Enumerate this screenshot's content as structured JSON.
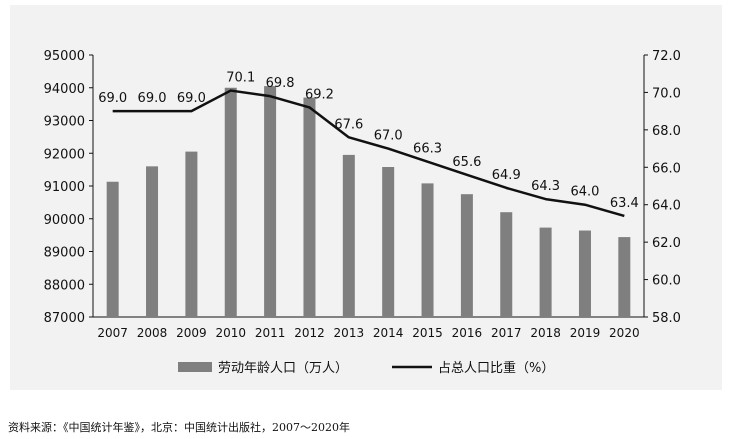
{
  "chart_data": {
    "type": "bar",
    "categories": [
      "2007",
      "2008",
      "2009",
      "2010",
      "2011",
      "2012",
      "2013",
      "2014",
      "2015",
      "2016",
      "2017",
      "2018",
      "2019",
      "2020"
    ],
    "series": [
      {
        "name": "劳动年龄人口（万人）",
        "type": "bar",
        "axis": "left",
        "values": [
          91130,
          91600,
          92050,
          94000,
          94050,
          93700,
          91950,
          91580,
          91080,
          90750,
          90200,
          89730,
          89640,
          89440
        ]
      },
      {
        "name": "占总人口比重（%）",
        "type": "line",
        "axis": "right",
        "values": [
          69.0,
          69.0,
          69.0,
          70.1,
          69.8,
          69.2,
          67.6,
          67.0,
          66.3,
          65.6,
          64.9,
          64.3,
          64.0,
          63.4
        ],
        "labels": [
          "69.0",
          "69.0",
          "69.0",
          "70.1",
          "69.8",
          "69.2",
          "67.6",
          "67.0",
          "66.3",
          "65.6",
          "64.9",
          "64.3",
          "64.0",
          "63.4"
        ]
      }
    ],
    "y_left": {
      "min": 87000,
      "max": 95000,
      "ticks": [
        "87000",
        "88000",
        "89000",
        "90000",
        "91000",
        "92000",
        "93000",
        "94000",
        "95000"
      ]
    },
    "y_right": {
      "min": 58.0,
      "max": 72.0,
      "ticks": [
        "58.0",
        "60.0",
        "62.0",
        "64.0",
        "66.0",
        "68.0",
        "70.0",
        "72.0"
      ]
    },
    "legend": [
      "劳动年龄人口（万人）",
      "占总人口比重（%）"
    ],
    "legend_position": "bottom",
    "colors": {
      "bar": "#7f7f7f",
      "line": "#111111",
      "axis": "#111111"
    }
  },
  "source": "资料来源：《中国统计年鉴》，北京：中国统计出版社，2007～2020年"
}
